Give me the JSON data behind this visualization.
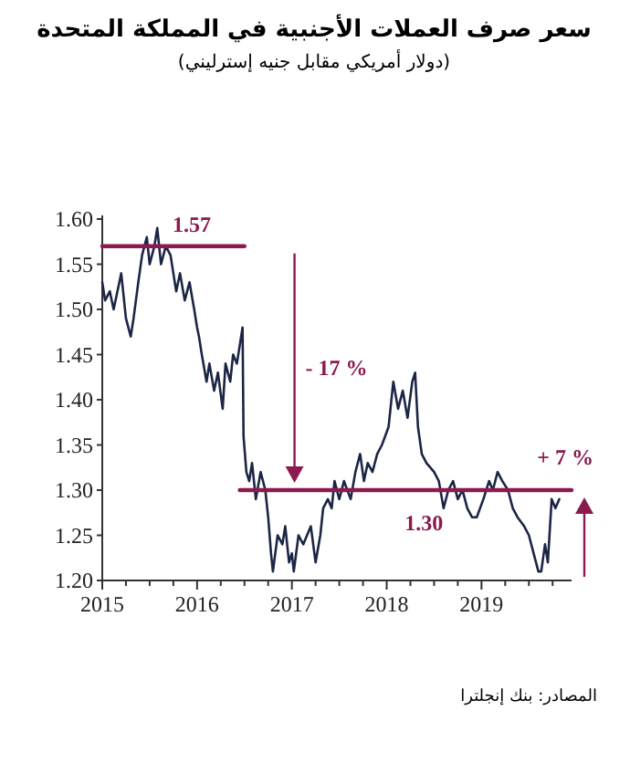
{
  "chart_data": {
    "type": "line",
    "title": "سعر صرف العملات الأجنبية في المملكة المتحدة",
    "subtitle": "(دولار أمريكي مقابل جنيه إسترليني)",
    "xlim": [
      2015,
      2019.95
    ],
    "xticks": [
      2015,
      {
        "value": 2015.25,
        "label": null
      },
      {
        "value": 2015.5,
        "label": null
      },
      {
        "value": 2015.75,
        "label": null
      },
      2016,
      {
        "value": 2016.25,
        "label": null
      },
      {
        "value": 2016.5,
        "label": null
      },
      {
        "value": 2016.75,
        "label": null
      },
      2017,
      {
        "value": 2017.25,
        "label": null
      },
      {
        "value": 2017.5,
        "label": null
      },
      {
        "value": 2017.75,
        "label": null
      },
      2018,
      {
        "value": 2018.25,
        "label": null
      },
      {
        "value": 2018.5,
        "label": null
      },
      {
        "value": 2018.75,
        "label": null
      },
      2019,
      {
        "value": 2019.25,
        "label": null
      },
      {
        "value": 2019.5,
        "label": null
      },
      {
        "value": 2019.75,
        "label": null
      }
    ],
    "ylim": [
      1.2,
      1.6
    ],
    "yticks": [
      {
        "value": 1.2,
        "label": "1.20"
      },
      {
        "value": 1.25,
        "label": "1.25"
      },
      {
        "value": 1.3,
        "label": "1.30"
      },
      {
        "value": 1.35,
        "label": "1.35"
      },
      {
        "value": 1.4,
        "label": "1.40"
      },
      {
        "value": 1.45,
        "label": "1.45"
      },
      {
        "value": 1.5,
        "label": "1.50"
      },
      {
        "value": 1.55,
        "label": "1.55"
      },
      {
        "value": 1.6,
        "label": "1.60"
      }
    ],
    "grid": false,
    "marker": "none",
    "line_style": "solid",
    "series": [
      {
        "color": "#1c2545",
        "x": [
          2015.0,
          2015.03,
          2015.08,
          2015.12,
          2015.2,
          2015.25,
          2015.3,
          2015.33,
          2015.38,
          2015.42,
          2015.47,
          2015.5,
          2015.55,
          2015.58,
          2015.62,
          2015.67,
          2015.72,
          2015.78,
          2015.82,
          2015.87,
          2015.92,
          2015.97,
          2016.0,
          2016.02,
          2016.05,
          2016.1,
          2016.13,
          2016.18,
          2016.22,
          2016.27,
          2016.3,
          2016.35,
          2016.38,
          2016.42,
          2016.45,
          2016.48,
          2016.49,
          2016.52,
          2016.55,
          2016.58,
          2016.62,
          2016.67,
          2016.72,
          2016.75,
          2016.78,
          2016.8,
          2016.85,
          2016.9,
          2016.93,
          2016.97,
          2017.0,
          2017.02,
          2017.07,
          2017.12,
          2017.2,
          2017.25,
          2017.3,
          2017.33,
          2017.38,
          2017.42,
          2017.45,
          2017.5,
          2017.55,
          2017.62,
          2017.67,
          2017.72,
          2017.76,
          2017.8,
          2017.85,
          2017.9,
          2017.95,
          2018.02,
          2018.07,
          2018.12,
          2018.17,
          2018.22,
          2018.27,
          2018.3,
          2018.33,
          2018.37,
          2018.42,
          2018.5,
          2018.55,
          2018.6,
          2018.65,
          2018.7,
          2018.75,
          2018.8,
          2018.85,
          2018.9,
          2018.95,
          2019.02,
          2019.08,
          2019.12,
          2019.17,
          2019.22,
          2019.28,
          2019.33,
          2019.38,
          2019.45,
          2019.5,
          2019.55,
          2019.6,
          2019.63,
          2019.67,
          2019.7,
          2019.74,
          2019.78,
          2019.82
        ],
        "values": [
          1.53,
          1.51,
          1.52,
          1.5,
          1.54,
          1.49,
          1.47,
          1.49,
          1.53,
          1.56,
          1.58,
          1.55,
          1.57,
          1.59,
          1.55,
          1.57,
          1.56,
          1.52,
          1.54,
          1.51,
          1.53,
          1.5,
          1.48,
          1.47,
          1.45,
          1.42,
          1.44,
          1.41,
          1.43,
          1.39,
          1.44,
          1.42,
          1.45,
          1.44,
          1.46,
          1.48,
          1.36,
          1.32,
          1.31,
          1.33,
          1.29,
          1.32,
          1.3,
          1.27,
          1.23,
          1.21,
          1.25,
          1.24,
          1.26,
          1.22,
          1.23,
          1.21,
          1.25,
          1.24,
          1.26,
          1.22,
          1.25,
          1.28,
          1.29,
          1.28,
          1.31,
          1.29,
          1.31,
          1.29,
          1.32,
          1.34,
          1.31,
          1.33,
          1.32,
          1.34,
          1.35,
          1.37,
          1.42,
          1.39,
          1.41,
          1.38,
          1.42,
          1.43,
          1.37,
          1.34,
          1.33,
          1.32,
          1.31,
          1.28,
          1.3,
          1.31,
          1.29,
          1.3,
          1.28,
          1.27,
          1.27,
          1.29,
          1.31,
          1.3,
          1.32,
          1.31,
          1.3,
          1.28,
          1.27,
          1.26,
          1.25,
          1.23,
          1.21,
          1.21,
          1.24,
          1.22,
          1.29,
          1.28,
          1.29
        ]
      },
      {
        "color": "#8b1a4f",
        "x": [
          2015.0,
          2016.5
        ],
        "values": [
          1.57,
          1.57
        ]
      },
      {
        "color": "#8b1a4f",
        "x": [
          2016.45,
          2019.95
        ],
        "values": [
          1.3,
          1.3
        ]
      }
    ],
    "annotations": [
      "1.57",
      "- 17 %",
      "1.30",
      "+ 7 %",
      "المصادر: بنك إنجلترا"
    ]
  }
}
